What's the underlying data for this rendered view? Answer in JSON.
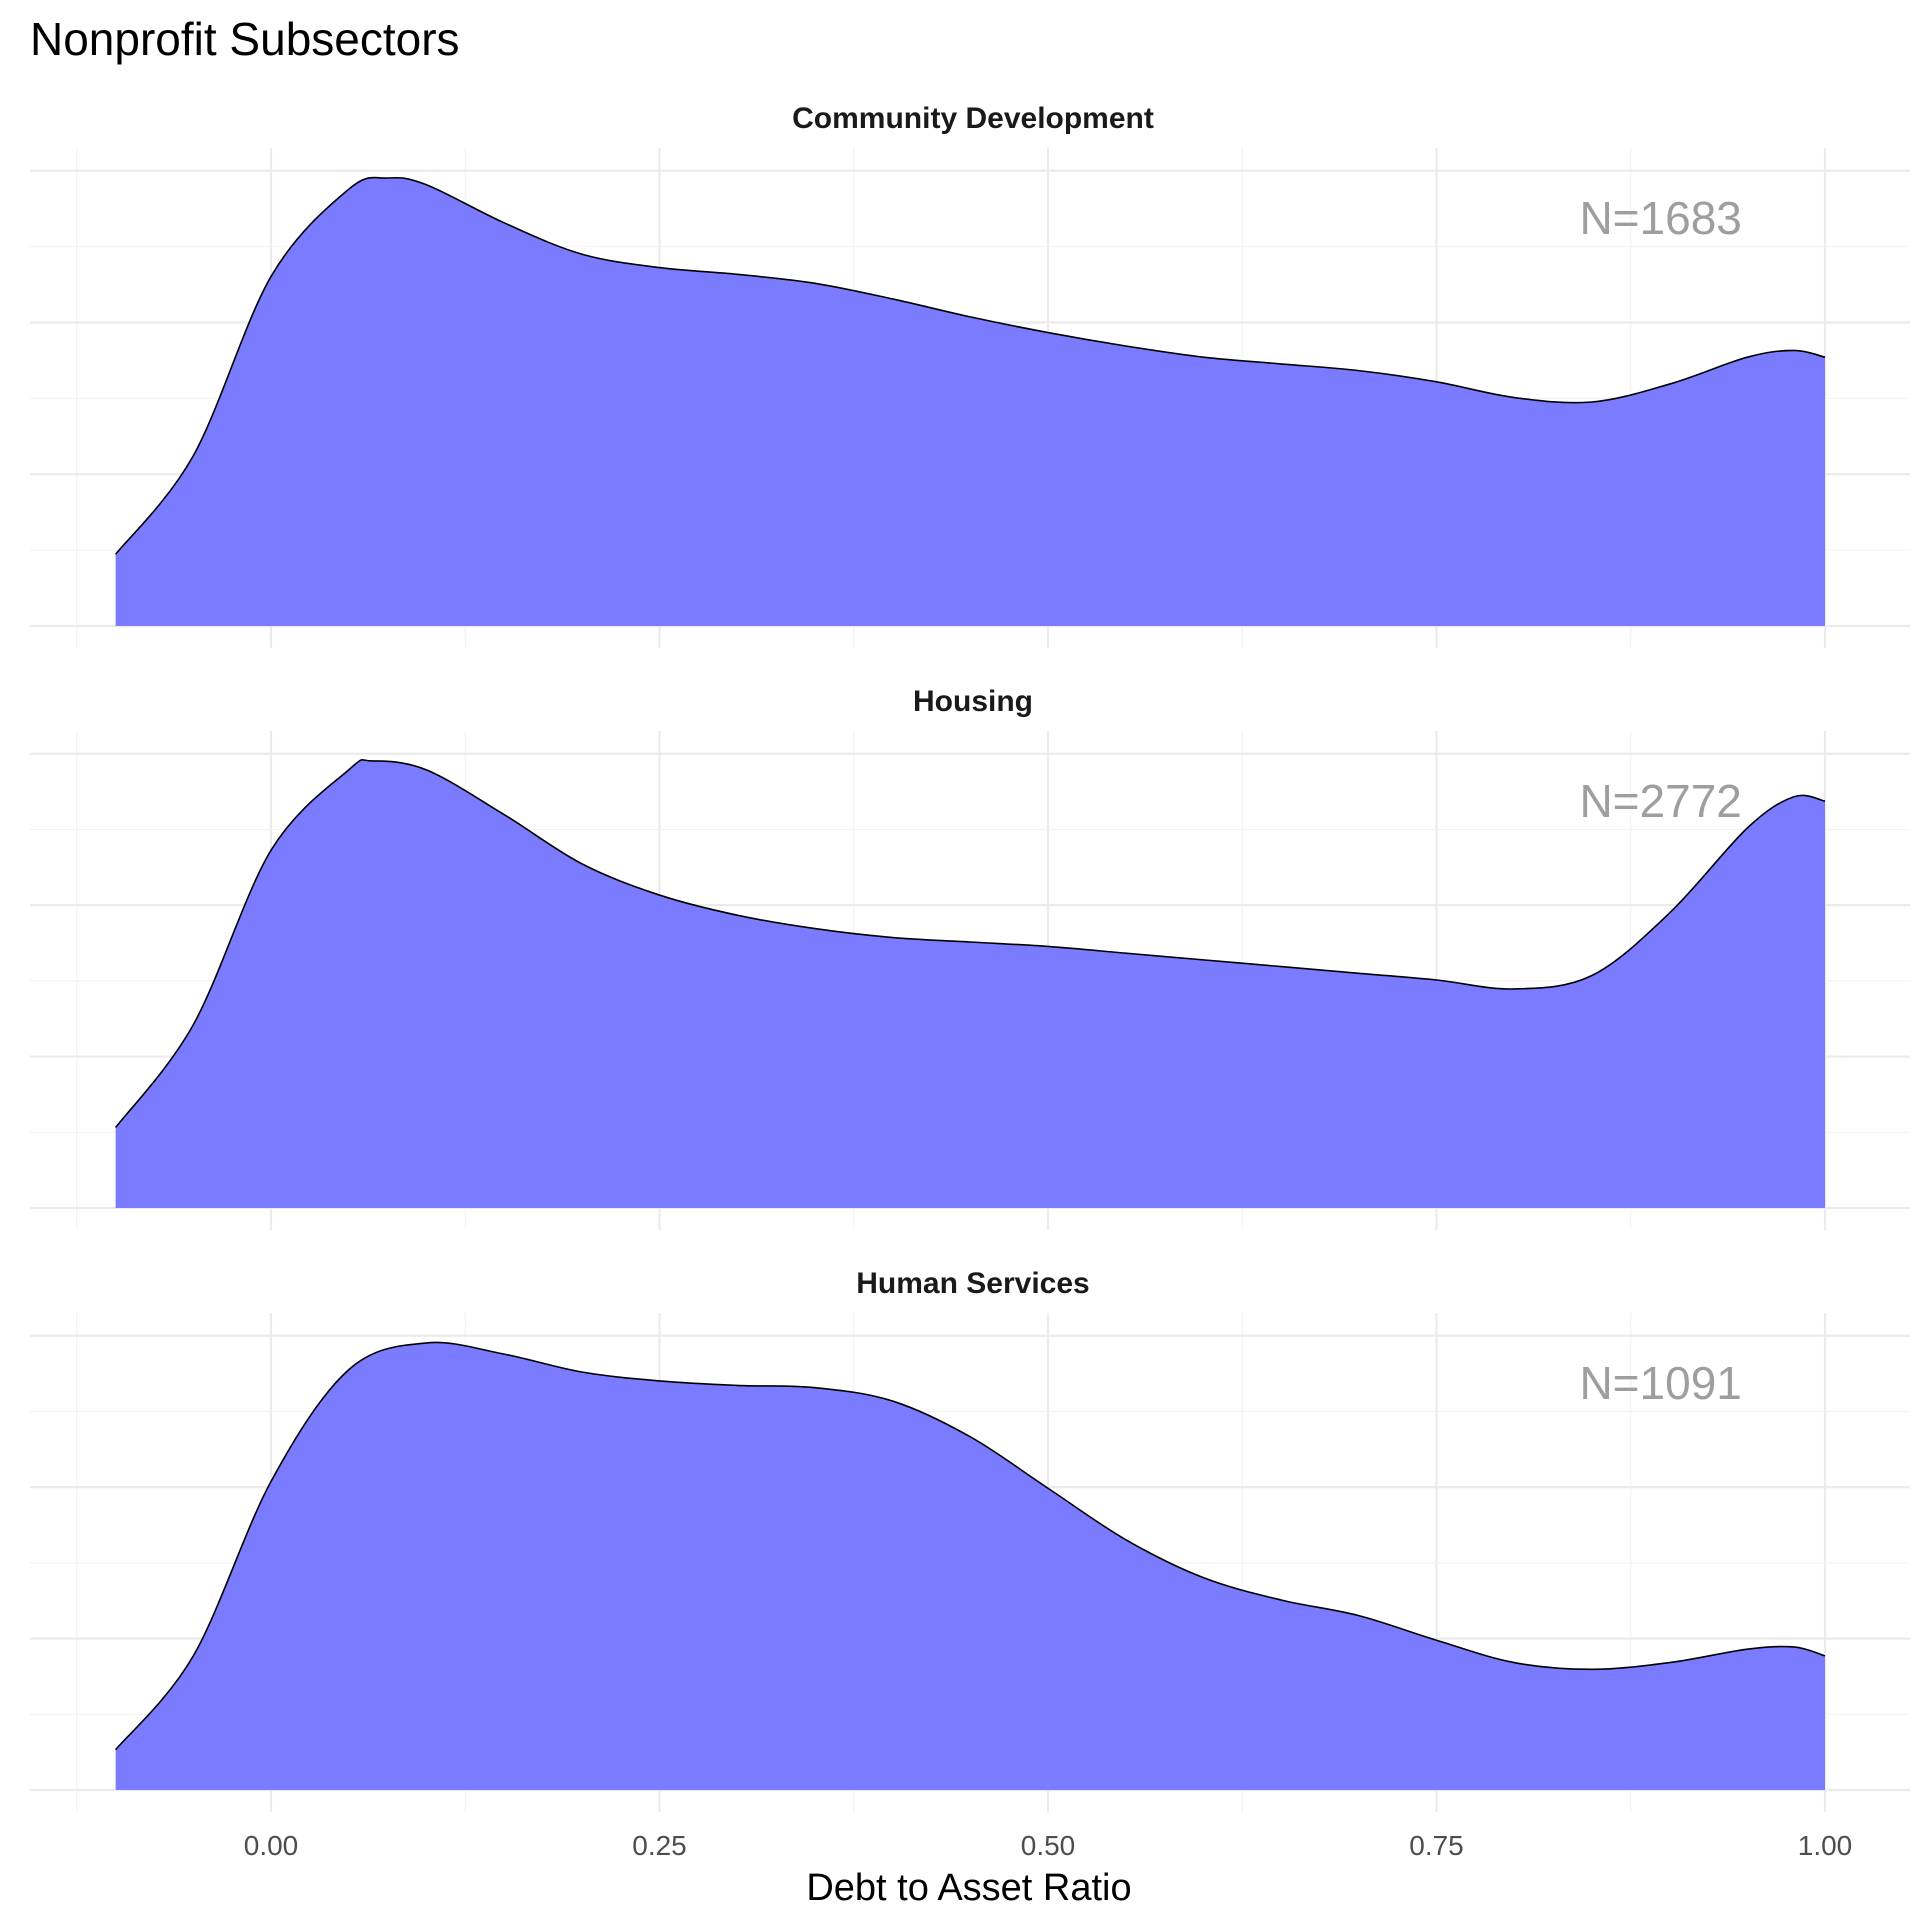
{
  "chart_data": {
    "type": "area",
    "title": "Nonprofit Subsectors",
    "xlabel": "Debt to Asset Ratio",
    "ylabel": "",
    "xlim": [
      -0.125,
      1.04
    ],
    "x_ticks": [
      "0.00",
      "0.25",
      "0.50",
      "0.75",
      "1.00"
    ],
    "x_tick_values": [
      0.0,
      0.25,
      0.5,
      0.75,
      1.0
    ],
    "y_ticks_shown": false,
    "grid": true,
    "fill_color": "#7b7bff",
    "outline_color": "#000000",
    "annotation_color": "#9e9e9e",
    "panels": [
      {
        "facet": "Community Development",
        "annotation": "N=1683",
        "x": [
          -0.1,
          -0.05,
          0.0,
          0.05,
          0.075,
          0.1,
          0.15,
          0.2,
          0.25,
          0.3,
          0.35,
          0.4,
          0.45,
          0.5,
          0.55,
          0.6,
          0.65,
          0.7,
          0.75,
          0.8,
          0.85,
          0.9,
          0.95,
          0.98,
          1.0
        ],
        "y": [
          0.16,
          0.38,
          0.78,
          0.975,
          1.0,
          0.985,
          0.9,
          0.83,
          0.8,
          0.785,
          0.765,
          0.73,
          0.69,
          0.655,
          0.625,
          0.6,
          0.585,
          0.57,
          0.545,
          0.51,
          0.5,
          0.54,
          0.6,
          0.615,
          0.6
        ]
      },
      {
        "facet": "Housing",
        "annotation": "N=2772",
        "x": [
          -0.1,
          -0.05,
          0.0,
          0.05,
          0.065,
          0.1,
          0.15,
          0.2,
          0.25,
          0.3,
          0.35,
          0.4,
          0.45,
          0.5,
          0.55,
          0.6,
          0.65,
          0.7,
          0.75,
          0.8,
          0.85,
          0.9,
          0.95,
          0.98,
          1.0
        ],
        "y": [
          0.18,
          0.41,
          0.8,
          0.98,
          1.0,
          0.98,
          0.88,
          0.77,
          0.7,
          0.655,
          0.625,
          0.605,
          0.595,
          0.585,
          0.57,
          0.555,
          0.54,
          0.525,
          0.51,
          0.49,
          0.52,
          0.66,
          0.85,
          0.92,
          0.91
        ]
      },
      {
        "facet": "Human Services",
        "annotation": "N=1091",
        "x": [
          -0.1,
          -0.05,
          0.0,
          0.05,
          0.1,
          0.15,
          0.2,
          0.25,
          0.3,
          0.35,
          0.4,
          0.45,
          0.5,
          0.55,
          0.6,
          0.65,
          0.7,
          0.75,
          0.8,
          0.85,
          0.9,
          0.95,
          0.98,
          1.0
        ],
        "y": [
          0.09,
          0.3,
          0.69,
          0.94,
          1.0,
          0.975,
          0.935,
          0.915,
          0.905,
          0.9,
          0.87,
          0.79,
          0.675,
          0.56,
          0.475,
          0.425,
          0.39,
          0.335,
          0.285,
          0.27,
          0.285,
          0.315,
          0.32,
          0.3
        ]
      }
    ]
  }
}
